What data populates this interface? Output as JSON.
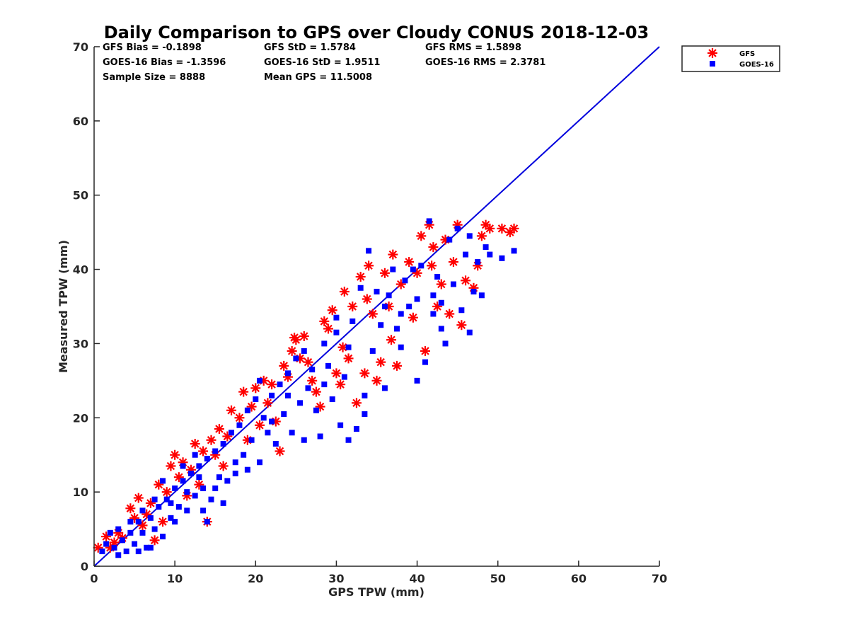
{
  "chart_data": {
    "type": "scatter",
    "title": "Daily Comparison to GPS over Cloudy CONUS 2018-12-03",
    "xlabel": "GPS TPW (mm)",
    "ylabel": "Measured TPW (mm)",
    "xlim": [
      0,
      70
    ],
    "ylim": [
      0,
      70
    ],
    "xticks": [
      "0",
      "10",
      "20",
      "30",
      "40",
      "50",
      "60",
      "70"
    ],
    "yticks": [
      "0",
      "10",
      "20",
      "30",
      "40",
      "50",
      "60",
      "70"
    ],
    "grid": false,
    "legend_position": "outside top-right",
    "stats": [
      [
        "GFS Bias = -0.1898",
        "GFS StD = 1.5784",
        "GFS RMS = 1.5898"
      ],
      [
        "GOES-16 Bias = -1.3596",
        "GOES-16 StD = 1.9511",
        "GOES-16 RMS = 2.3781"
      ],
      [
        "Sample Size = 8888",
        "Mean GPS = 11.5008",
        ""
      ]
    ],
    "reference_line": {
      "x": [
        0,
        70
      ],
      "y": [
        0,
        70
      ],
      "color": "#0000dd"
    },
    "series": [
      {
        "name": "GFS",
        "marker": "asterisk",
        "color": "#ff0000",
        "points": [
          [
            1.5,
            4.0
          ],
          [
            2.5,
            3.2
          ],
          [
            4.5,
            7.8
          ],
          [
            5.5,
            9.2
          ],
          [
            6.0,
            5.5
          ],
          [
            7.0,
            8.5
          ],
          [
            8.0,
            11.0
          ],
          [
            8.5,
            6.0
          ],
          [
            9.5,
            13.5
          ],
          [
            10.0,
            15.0
          ],
          [
            11.0,
            14.0
          ],
          [
            12.0,
            13.0
          ],
          [
            12.5,
            16.5
          ],
          [
            13.5,
            15.5
          ],
          [
            14.0,
            6.0
          ],
          [
            14.5,
            17.0
          ],
          [
            15.5,
            18.5
          ],
          [
            16.0,
            13.5
          ],
          [
            17.0,
            21.0
          ],
          [
            18.0,
            20.0
          ],
          [
            18.5,
            23.5
          ],
          [
            19.0,
            17.0
          ],
          [
            20.0,
            24.0
          ],
          [
            20.5,
            19.0
          ],
          [
            21.0,
            25.0
          ],
          [
            22.0,
            24.5
          ],
          [
            22.5,
            19.5
          ],
          [
            23.0,
            15.5
          ],
          [
            23.5,
            27.0
          ],
          [
            24.0,
            25.5
          ],
          [
            24.5,
            29.0
          ],
          [
            25.0,
            30.5
          ],
          [
            25.5,
            28.0
          ],
          [
            26.0,
            31.0
          ],
          [
            27.0,
            25.0
          ],
          [
            27.5,
            23.5
          ],
          [
            28.0,
            21.5
          ],
          [
            29.0,
            32.0
          ],
          [
            29.5,
            34.5
          ],
          [
            30.0,
            26.0
          ],
          [
            30.5,
            24.5
          ],
          [
            31.0,
            37.0
          ],
          [
            31.5,
            28.0
          ],
          [
            32.0,
            35.0
          ],
          [
            32.5,
            22.0
          ],
          [
            33.0,
            39.0
          ],
          [
            33.5,
            26.0
          ],
          [
            34.0,
            40.5
          ],
          [
            34.5,
            34.0
          ],
          [
            35.0,
            25.0
          ],
          [
            35.5,
            27.5
          ],
          [
            36.0,
            39.5
          ],
          [
            36.5,
            35.0
          ],
          [
            37.0,
            42.0
          ],
          [
            37.5,
            27.0
          ],
          [
            38.0,
            38.0
          ],
          [
            39.0,
            41.0
          ],
          [
            40.0,
            39.5
          ],
          [
            40.5,
            44.5
          ],
          [
            41.0,
            29.0
          ],
          [
            41.5,
            46.0
          ],
          [
            42.0,
            43.0
          ],
          [
            42.5,
            35.0
          ],
          [
            43.0,
            38.0
          ],
          [
            43.5,
            44.0
          ],
          [
            44.0,
            34.0
          ],
          [
            44.5,
            41.0
          ],
          [
            45.0,
            46.0
          ],
          [
            45.5,
            32.5
          ],
          [
            46.0,
            38.5
          ],
          [
            47.0,
            37.5
          ],
          [
            47.5,
            40.5
          ],
          [
            48.0,
            44.5
          ],
          [
            48.5,
            46.0
          ],
          [
            49.0,
            45.5
          ],
          [
            50.5,
            45.5
          ],
          [
            51.5,
            45.0
          ],
          [
            52.0,
            45.5
          ],
          [
            3.0,
            4.5
          ],
          [
            5.0,
            6.5
          ],
          [
            6.5,
            7.0
          ],
          [
            9.0,
            10.0
          ],
          [
            10.5,
            12.0
          ],
          [
            11.5,
            9.5
          ],
          [
            13.0,
            11.0
          ],
          [
            15.0,
            15.0
          ],
          [
            16.5,
            17.5
          ],
          [
            19.5,
            21.5
          ],
          [
            21.5,
            22.0
          ],
          [
            24.8,
            30.8
          ],
          [
            26.5,
            27.5
          ],
          [
            28.5,
            33.0
          ],
          [
            30.8,
            29.5
          ],
          [
            33.8,
            36.0
          ],
          [
            36.8,
            30.5
          ],
          [
            39.5,
            33.5
          ],
          [
            41.8,
            40.5
          ],
          [
            0.5,
            2.5
          ],
          [
            2.0,
            2.5
          ],
          [
            3.5,
            3.8
          ],
          [
            7.5,
            3.5
          ]
        ]
      },
      {
        "name": "GOES-16",
        "marker": "square",
        "color": "#0000ff",
        "points": [
          [
            1.0,
            2.0
          ],
          [
            1.5,
            3.0
          ],
          [
            2.0,
            4.5
          ],
          [
            2.5,
            2.5
          ],
          [
            3.0,
            1.5
          ],
          [
            3.5,
            3.5
          ],
          [
            4.0,
            2.0
          ],
          [
            4.5,
            4.5
          ],
          [
            5.0,
            3.0
          ],
          [
            5.5,
            6.0
          ],
          [
            6.0,
            4.5
          ],
          [
            6.5,
            2.5
          ],
          [
            7.0,
            6.5
          ],
          [
            7.5,
            5.0
          ],
          [
            8.0,
            8.0
          ],
          [
            8.5,
            4.0
          ],
          [
            9.0,
            9.0
          ],
          [
            9.5,
            6.5
          ],
          [
            10.0,
            10.5
          ],
          [
            10.5,
            8.0
          ],
          [
            11.0,
            11.5
          ],
          [
            11.5,
            7.5
          ],
          [
            12.0,
            12.5
          ],
          [
            12.5,
            9.5
          ],
          [
            13.0,
            13.5
          ],
          [
            13.5,
            10.5
          ],
          [
            14.0,
            14.5
          ],
          [
            14.5,
            9.0
          ],
          [
            15.0,
            15.5
          ],
          [
            15.5,
            12.0
          ],
          [
            16.0,
            16.5
          ],
          [
            16.5,
            11.5
          ],
          [
            17.0,
            18.0
          ],
          [
            17.5,
            14.0
          ],
          [
            18.0,
            19.0
          ],
          [
            18.5,
            15.0
          ],
          [
            19.0,
            21.0
          ],
          [
            19.5,
            17.0
          ],
          [
            20.0,
            22.5
          ],
          [
            20.5,
            14.0
          ],
          [
            21.0,
            20.0
          ],
          [
            21.5,
            18.0
          ],
          [
            22.0,
            23.0
          ],
          [
            22.5,
            16.5
          ],
          [
            23.0,
            24.5
          ],
          [
            23.5,
            20.5
          ],
          [
            24.0,
            26.0
          ],
          [
            24.5,
            18.0
          ],
          [
            25.0,
            28.0
          ],
          [
            25.5,
            22.0
          ],
          [
            26.0,
            29.0
          ],
          [
            26.5,
            24.0
          ],
          [
            27.0,
            26.5
          ],
          [
            27.5,
            21.0
          ],
          [
            28.0,
            17.5
          ],
          [
            28.5,
            30.0
          ],
          [
            29.0,
            27.0
          ],
          [
            29.5,
            22.5
          ],
          [
            30.0,
            31.5
          ],
          [
            30.5,
            19.0
          ],
          [
            31.0,
            25.5
          ],
          [
            31.5,
            29.5
          ],
          [
            32.0,
            33.0
          ],
          [
            32.5,
            18.5
          ],
          [
            33.0,
            37.5
          ],
          [
            33.5,
            20.5
          ],
          [
            34.0,
            42.5
          ],
          [
            34.5,
            29.0
          ],
          [
            35.0,
            37.0
          ],
          [
            35.5,
            32.5
          ],
          [
            36.0,
            24.0
          ],
          [
            36.5,
            36.5
          ],
          [
            37.0,
            40.0
          ],
          [
            37.5,
            32.0
          ],
          [
            38.0,
            34.0
          ],
          [
            38.5,
            38.5
          ],
          [
            39.0,
            35.0
          ],
          [
            39.5,
            40.0
          ],
          [
            40.0,
            36.0
          ],
          [
            40.5,
            40.5
          ],
          [
            41.0,
            27.5
          ],
          [
            41.5,
            46.5
          ],
          [
            42.0,
            36.5
          ],
          [
            42.5,
            39.0
          ],
          [
            43.0,
            35.5
          ],
          [
            43.5,
            30.0
          ],
          [
            44.0,
            44.0
          ],
          [
            44.5,
            38.0
          ],
          [
            45.0,
            45.5
          ],
          [
            45.5,
            34.5
          ],
          [
            46.0,
            42.0
          ],
          [
            46.5,
            31.5
          ],
          [
            47.0,
            37.0
          ],
          [
            47.5,
            41.0
          ],
          [
            48.0,
            36.5
          ],
          [
            48.5,
            43.0
          ],
          [
            49.0,
            42.0
          ],
          [
            50.5,
            41.5
          ],
          [
            52.0,
            42.5
          ],
          [
            14.0,
            6.0
          ],
          [
            3.0,
            5.0
          ],
          [
            5.5,
            2.0
          ],
          [
            7.0,
            2.5
          ],
          [
            8.5,
            11.5
          ],
          [
            10.0,
            6.0
          ],
          [
            11.0,
            13.5
          ],
          [
            12.5,
            15.0
          ],
          [
            13.5,
            7.5
          ],
          [
            15.0,
            10.5
          ],
          [
            16.0,
            8.5
          ],
          [
            17.5,
            12.5
          ],
          [
            19.0,
            13.0
          ],
          [
            20.5,
            25.0
          ],
          [
            22.0,
            19.5
          ],
          [
            24.0,
            23.0
          ],
          [
            26.0,
            17.0
          ],
          [
            28.5,
            24.5
          ],
          [
            30.0,
            33.5
          ],
          [
            31.5,
            17.0
          ],
          [
            33.5,
            23.0
          ],
          [
            36.0,
            35.0
          ],
          [
            38.0,
            29.5
          ],
          [
            40.0,
            25.0
          ],
          [
            42.0,
            34.0
          ],
          [
            43.0,
            32.0
          ],
          [
            46.5,
            44.5
          ],
          [
            9.5,
            8.5
          ],
          [
            11.5,
            10.0
          ],
          [
            13.0,
            12.0
          ],
          [
            6.0,
            7.5
          ],
          [
            4.5,
            6.0
          ],
          [
            7.5,
            9.0
          ]
        ]
      }
    ]
  }
}
